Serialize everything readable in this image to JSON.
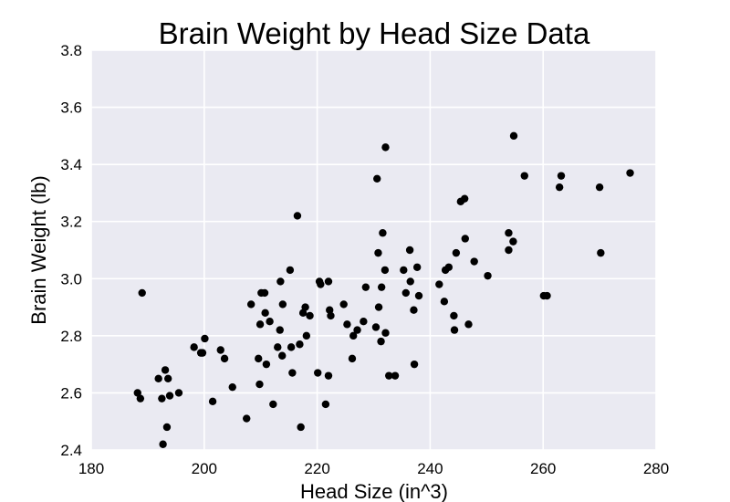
{
  "chart_data": {
    "type": "scatter",
    "title": "Brain Weight by Head Size Data",
    "xlabel": "Head Size (in^3)",
    "ylabel": "Brain Weight (lb)",
    "xlim": [
      180,
      280
    ],
    "ylim": [
      2.4,
      3.8
    ],
    "xticks": [
      "180",
      "200",
      "220",
      "240",
      "260",
      "280"
    ],
    "yticks": [
      "2.4",
      "2.6",
      "2.8",
      "3.0",
      "3.2",
      "3.4",
      "3.6",
      "3.8"
    ],
    "grid": true,
    "legend": "none",
    "colors": {
      "background": "#EAEAF2",
      "grid": "#FFFFFF",
      "point": "#000000"
    },
    "points": [
      {
        "x": 188.2,
        "y": 2.6
      },
      {
        "x": 188.7,
        "y": 2.58
      },
      {
        "x": 189.0,
        "y": 2.95
      },
      {
        "x": 191.9,
        "y": 2.65
      },
      {
        "x": 192.5,
        "y": 2.58
      },
      {
        "x": 192.7,
        "y": 2.42
      },
      {
        "x": 193.1,
        "y": 2.68
      },
      {
        "x": 193.4,
        "y": 2.48
      },
      {
        "x": 193.6,
        "y": 2.65
      },
      {
        "x": 193.9,
        "y": 2.59
      },
      {
        "x": 195.5,
        "y": 2.6
      },
      {
        "x": 198.2,
        "y": 2.76
      },
      {
        "x": 199.4,
        "y": 2.74
      },
      {
        "x": 199.7,
        "y": 2.74
      },
      {
        "x": 200.1,
        "y": 2.79
      },
      {
        "x": 201.5,
        "y": 2.57
      },
      {
        "x": 202.9,
        "y": 2.75
      },
      {
        "x": 203.6,
        "y": 2.72
      },
      {
        "x": 205.0,
        "y": 2.62
      },
      {
        "x": 207.5,
        "y": 2.51
      },
      {
        "x": 208.3,
        "y": 2.91
      },
      {
        "x": 209.6,
        "y": 2.72
      },
      {
        "x": 209.8,
        "y": 2.63
      },
      {
        "x": 209.9,
        "y": 2.84
      },
      {
        "x": 210.1,
        "y": 2.95
      },
      {
        "x": 210.7,
        "y": 2.95
      },
      {
        "x": 210.8,
        "y": 2.88
      },
      {
        "x": 211.0,
        "y": 2.7
      },
      {
        "x": 211.6,
        "y": 2.85
      },
      {
        "x": 212.2,
        "y": 2.56
      },
      {
        "x": 213.0,
        "y": 2.76
      },
      {
        "x": 213.4,
        "y": 2.82
      },
      {
        "x": 213.5,
        "y": 2.99
      },
      {
        "x": 213.8,
        "y": 2.73
      },
      {
        "x": 213.9,
        "y": 2.91
      },
      {
        "x": 215.2,
        "y": 3.03
      },
      {
        "x": 215.4,
        "y": 2.76
      },
      {
        "x": 215.6,
        "y": 2.67
      },
      {
        "x": 216.5,
        "y": 3.22
      },
      {
        "x": 216.9,
        "y": 2.77
      },
      {
        "x": 217.1,
        "y": 2.48
      },
      {
        "x": 217.5,
        "y": 2.88
      },
      {
        "x": 217.9,
        "y": 2.9
      },
      {
        "x": 218.1,
        "y": 2.8
      },
      {
        "x": 218.7,
        "y": 2.87
      },
      {
        "x": 220.1,
        "y": 2.67
      },
      {
        "x": 220.4,
        "y": 2.99
      },
      {
        "x": 220.6,
        "y": 2.98
      },
      {
        "x": 221.5,
        "y": 2.56
      },
      {
        "x": 222.0,
        "y": 2.99
      },
      {
        "x": 222.0,
        "y": 2.66
      },
      {
        "x": 222.2,
        "y": 2.89
      },
      {
        "x": 222.4,
        "y": 2.87
      },
      {
        "x": 224.7,
        "y": 2.91
      },
      {
        "x": 225.3,
        "y": 2.84
      },
      {
        "x": 226.2,
        "y": 2.72
      },
      {
        "x": 226.4,
        "y": 2.8
      },
      {
        "x": 227.1,
        "y": 2.82
      },
      {
        "x": 228.2,
        "y": 2.85
      },
      {
        "x": 228.6,
        "y": 2.97
      },
      {
        "x": 230.4,
        "y": 2.83
      },
      {
        "x": 230.6,
        "y": 3.35
      },
      {
        "x": 230.8,
        "y": 3.09
      },
      {
        "x": 230.9,
        "y": 2.9
      },
      {
        "x": 231.3,
        "y": 2.78
      },
      {
        "x": 231.4,
        "y": 2.97
      },
      {
        "x": 231.6,
        "y": 3.16
      },
      {
        "x": 232.0,
        "y": 3.03
      },
      {
        "x": 232.1,
        "y": 2.81
      },
      {
        "x": 232.1,
        "y": 3.46
      },
      {
        "x": 232.7,
        "y": 2.66
      },
      {
        "x": 233.8,
        "y": 2.66
      },
      {
        "x": 235.3,
        "y": 3.03
      },
      {
        "x": 235.7,
        "y": 2.95
      },
      {
        "x": 236.4,
        "y": 3.1
      },
      {
        "x": 236.5,
        "y": 2.99
      },
      {
        "x": 237.1,
        "y": 2.89
      },
      {
        "x": 237.2,
        "y": 2.7
      },
      {
        "x": 237.7,
        "y": 3.04
      },
      {
        "x": 238.0,
        "y": 2.94
      },
      {
        "x": 241.6,
        "y": 2.98
      },
      {
        "x": 242.5,
        "y": 2.92
      },
      {
        "x": 242.7,
        "y": 3.03
      },
      {
        "x": 243.3,
        "y": 3.04
      },
      {
        "x": 244.2,
        "y": 2.87
      },
      {
        "x": 244.3,
        "y": 2.82
      },
      {
        "x": 244.6,
        "y": 3.09
      },
      {
        "x": 245.4,
        "y": 3.27
      },
      {
        "x": 246.1,
        "y": 3.28
      },
      {
        "x": 246.2,
        "y": 3.14
      },
      {
        "x": 246.8,
        "y": 2.84
      },
      {
        "x": 247.8,
        "y": 3.06
      },
      {
        "x": 250.2,
        "y": 3.01
      },
      {
        "x": 253.9,
        "y": 3.1
      },
      {
        "x": 253.9,
        "y": 3.16
      },
      {
        "x": 254.7,
        "y": 3.13
      },
      {
        "x": 254.8,
        "y": 3.5
      },
      {
        "x": 256.7,
        "y": 3.36
      },
      {
        "x": 260.1,
        "y": 2.94
      },
      {
        "x": 260.7,
        "y": 2.94
      },
      {
        "x": 262.9,
        "y": 3.32
      },
      {
        "x": 263.2,
        "y": 3.36
      },
      {
        "x": 270.0,
        "y": 3.32
      },
      {
        "x": 270.2,
        "y": 3.09
      },
      {
        "x": 275.4,
        "y": 3.37
      }
    ]
  }
}
